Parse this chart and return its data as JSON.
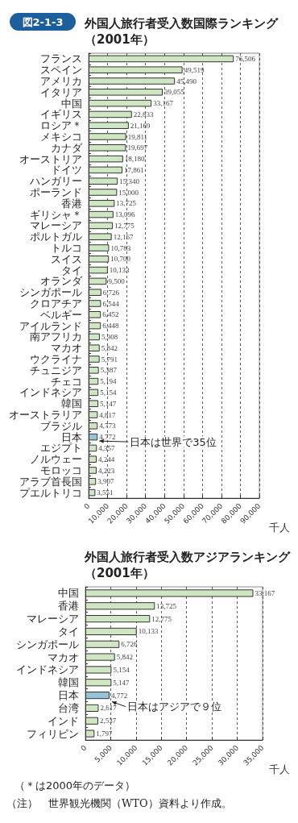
{
  "chart_data": [
    {
      "type": "bar",
      "orientation": "horizontal",
      "title": "外国人旅行者受入数国際ランキング（2001年）",
      "xlabel": "千人",
      "categories": [
        "フランス",
        "スペイン",
        "アメリカ",
        "イタリア",
        "中国",
        "イギリス",
        "ロシア＊",
        "メキシコ",
        "カナダ",
        "オーストリア",
        "ドイツ",
        "ハンガリー",
        "ポーランド",
        "香港",
        "ギリシャ＊",
        "マレーシア",
        "ポルトガル",
        "トルコ",
        "スイス",
        "タイ",
        "オランダ",
        "シンガポール",
        "クロアチア",
        "ベルギー",
        "アイルランド",
        "南アフリカ",
        "マカオ",
        "ウクライナ",
        "チュニジア",
        "チェコ",
        "インドネシア",
        "韓国",
        "オーストラリア",
        "ブラジル",
        "日本",
        "エジプト",
        "ノルウェー",
        "モロッコ",
        "アラブ首長国",
        "プエルトリコ"
      ],
      "values": [
        76506,
        49519,
        45490,
        39055,
        33167,
        22833,
        21169,
        19811,
        19697,
        18180,
        17861,
        15340,
        15000,
        13725,
        13096,
        12775,
        12167,
        10783,
        10700,
        10133,
        9500,
        6726,
        6544,
        6452,
        6448,
        5908,
        5842,
        5791,
        5387,
        5194,
        5154,
        5147,
        4817,
        4773,
        4772,
        4357,
        4244,
        4223,
        3907,
        3551
      ],
      "colors": [
        "#cfe6c3",
        "#cfe6c3",
        "#cfe6c3",
        "#cfe6c3",
        "#cfe6c3",
        "#cfe6c3",
        "#cfe6c3",
        "#cfe6c3",
        "#cfe6c3",
        "#cfe6c3",
        "#cfe6c3",
        "#cfe6c3",
        "#cfe6c3",
        "#cfe6c3",
        "#cfe6c3",
        "#cfe6c3",
        "#cfe6c3",
        "#cfe6c3",
        "#cfe6c3",
        "#cfe6c3",
        "#cfe6c3",
        "#cfe6c3",
        "#cfe6c3",
        "#cfe6c3",
        "#cfe6c3",
        "#cfe6c3",
        "#cfe6c3",
        "#cfe6c3",
        "#cfe6c3",
        "#cfe6c3",
        "#cfe6c3",
        "#cfe6c3",
        "#cfe6c3",
        "#cfe6c3",
        "#95c4d8",
        "#cfe6c3",
        "#cfe6c3",
        "#cfe6c3",
        "#cfe6c3",
        "#cfe6c3"
      ],
      "xlim": [
        0,
        90000
      ],
      "xticks": [
        0,
        {
          "value": 10000,
          "label": "10,000"
        },
        {
          "value": 20000,
          "label": "20,000"
        },
        {
          "value": 30000,
          "label": "30,000"
        },
        {
          "value": 40000,
          "label": "40,000"
        },
        {
          "value": 50000,
          "label": "50,000"
        },
        {
          "value": 60000,
          "label": "60,000"
        },
        {
          "value": 70000,
          "label": "70,000"
        },
        {
          "value": 80000,
          "label": "80,000"
        },
        {
          "value": 90000,
          "label": "90,000"
        }
      ],
      "grid": "x",
      "value_labels": [
        "76,506",
        "49,519",
        "45,490",
        "39,055",
        "33,167",
        "22,833",
        "21,169",
        "19,811",
        "19,697",
        "18,180",
        "17,861",
        "15,340",
        "15,000",
        "13,725",
        "13,096",
        "12,775",
        "12,167",
        "10,783",
        "10,700",
        "10,133",
        "9,500",
        "6,726",
        "6,544",
        "6,452",
        "6,448",
        "5,908",
        "5,842",
        "5,791",
        "5,387",
        "5,194",
        "5,154",
        "5,147",
        "4,817",
        "4,773",
        "4,772",
        "4,357",
        "4,244",
        "4,223",
        "3,907",
        "3,551"
      ],
      "annotations": [
        "図2-1-3",
        {
          "text": "日本は世界で35位",
          "x": 4772,
          "y": "日本"
        }
      ]
    },
    {
      "type": "bar",
      "orientation": "horizontal",
      "title": "外国人旅行者受入数アジアランキング（2001年）",
      "xlabel": "千人",
      "categories": [
        "中国",
        "香港",
        "マレーシア",
        "タイ",
        "シンガポール",
        "マカオ",
        "インドネシア",
        "韓国",
        "日本",
        "台湾",
        "インド",
        "フィリピン"
      ],
      "values": [
        33167,
        13725,
        12775,
        10133,
        6726,
        5842,
        5154,
        5147,
        4772,
        2617,
        2537,
        1797
      ],
      "colors": [
        "#cfe6c3",
        "#cfe6c3",
        "#cfe6c3",
        "#cfe6c3",
        "#cfe6c3",
        "#cfe6c3",
        "#cfe6c3",
        "#cfe6c3",
        "#95c4d8",
        "#cfe6c3",
        "#cfe6c3",
        "#cfe6c3"
      ],
      "xlim": [
        0,
        35000
      ],
      "xticks": [
        0,
        {
          "value": 5000,
          "label": "5,000"
        },
        {
          "value": 10000,
          "label": "10,000"
        },
        {
          "value": 15000,
          "label": "15,000"
        },
        {
          "value": 20000,
          "label": "20,000"
        },
        {
          "value": 25000,
          "label": "25,000"
        },
        {
          "value": 30000,
          "label": "30,000"
        },
        {
          "value": 35000,
          "label": "35,000"
        }
      ],
      "grid": "x",
      "value_labels": [
        "33,167",
        "13,725",
        "12,775",
        "10,133",
        "6,726",
        "5,842",
        "5,154",
        "5,147",
        "4,772",
        "2,617",
        "2,537",
        "1,797"
      ],
      "annotations": [
        {
          "text": "日本はアジアで９位",
          "x": 4772,
          "y": "日本"
        },
        "（＊は2000年のデータ）",
        "（注）　世界観光機関（WTO）資料より作成。"
      ]
    }
  ]
}
